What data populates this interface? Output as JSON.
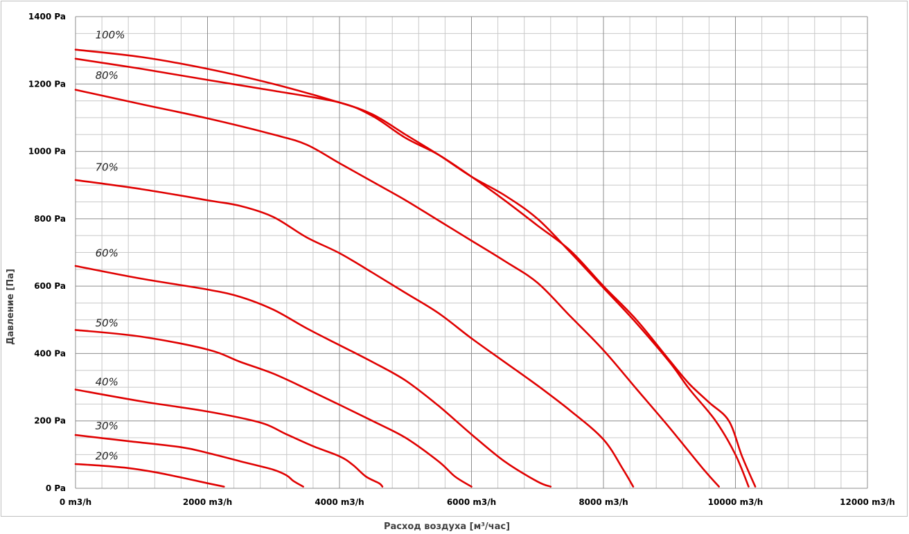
{
  "chart_data": {
    "type": "line",
    "xlabel": "Расход воздуха [м³/час]",
    "ylabel": "Давление [Па]",
    "xlim": [
      0,
      12000
    ],
    "ylim": [
      0,
      1400
    ],
    "x_ticks": [
      0,
      2000,
      4000,
      6000,
      8000,
      10000,
      12000
    ],
    "x_tick_labels": [
      "0 m3/h",
      "2000 m3/h",
      "4000 m3/h",
      "6000 m3/h",
      "8000 m3/h",
      "10000 m3/h",
      "12000 m3/h"
    ],
    "y_ticks": [
      0,
      200,
      400,
      600,
      800,
      1000,
      1200,
      1400
    ],
    "y_tick_labels": [
      "0 Pa",
      "200 Pa",
      "400 Pa",
      "600 Pa",
      "800 Pa",
      "1000 Pa",
      "1200 Pa",
      "1400 Pa"
    ],
    "grid": true,
    "legend": "none",
    "curve_color": "#e00000",
    "series": [
      {
        "name": "100%",
        "points": [
          [
            0,
            1302
          ],
          [
            1000,
            1280
          ],
          [
            2000,
            1245
          ],
          [
            3000,
            1200
          ],
          [
            4000,
            1145
          ],
          [
            4500,
            1110
          ],
          [
            5000,
            1050
          ],
          [
            5500,
            990
          ],
          [
            6000,
            925
          ],
          [
            6500,
            870
          ],
          [
            7000,
            800
          ],
          [
            7500,
            700
          ],
          [
            8000,
            595
          ],
          [
            8500,
            490
          ],
          [
            9000,
            375
          ],
          [
            9300,
            295
          ],
          [
            9700,
            200
          ],
          [
            10000,
            100
          ],
          [
            10200,
            5
          ]
        ]
      },
      {
        "name": "",
        "points": [
          [
            0,
            1275
          ],
          [
            1000,
            1245
          ],
          [
            2000,
            1212
          ],
          [
            3000,
            1180
          ],
          [
            4000,
            1145
          ],
          [
            4500,
            1105
          ],
          [
            5000,
            1040
          ],
          [
            5500,
            990
          ],
          [
            6000,
            925
          ],
          [
            6500,
            855
          ],
          [
            7000,
            780
          ],
          [
            7500,
            705
          ],
          [
            8000,
            600
          ],
          [
            8500,
            500
          ],
          [
            9000,
            380
          ],
          [
            9300,
            310
          ],
          [
            9600,
            255
          ],
          [
            9900,
            200
          ],
          [
            10100,
            95
          ],
          [
            10300,
            5
          ]
        ]
      },
      {
        "name": "80%",
        "points": [
          [
            0,
            1183
          ],
          [
            1000,
            1140
          ],
          [
            2000,
            1098
          ],
          [
            3000,
            1050
          ],
          [
            3500,
            1020
          ],
          [
            4000,
            965
          ],
          [
            4500,
            910
          ],
          [
            5000,
            855
          ],
          [
            5500,
            795
          ],
          [
            6000,
            735
          ],
          [
            6500,
            675
          ],
          [
            7000,
            610
          ],
          [
            7500,
            510
          ],
          [
            8000,
            410
          ],
          [
            8500,
            295
          ],
          [
            9000,
            180
          ],
          [
            9500,
            60
          ],
          [
            9750,
            5
          ]
        ]
      },
      {
        "name": "70%",
        "points": [
          [
            0,
            915
          ],
          [
            1000,
            888
          ],
          [
            2000,
            855
          ],
          [
            2500,
            838
          ],
          [
            3000,
            805
          ],
          [
            3500,
            745
          ],
          [
            4000,
            698
          ],
          [
            4500,
            640
          ],
          [
            5000,
            580
          ],
          [
            5500,
            520
          ],
          [
            6000,
            445
          ],
          [
            6500,
            375
          ],
          [
            7000,
            305
          ],
          [
            7500,
            230
          ],
          [
            8000,
            145
          ],
          [
            8300,
            55
          ],
          [
            8450,
            5
          ]
        ]
      },
      {
        "name": "60%",
        "points": [
          [
            0,
            660
          ],
          [
            1000,
            622
          ],
          [
            2000,
            590
          ],
          [
            2500,
            568
          ],
          [
            3000,
            530
          ],
          [
            3500,
            475
          ],
          [
            4000,
            425
          ],
          [
            4500,
            375
          ],
          [
            5000,
            320
          ],
          [
            5500,
            245
          ],
          [
            6000,
            160
          ],
          [
            6500,
            80
          ],
          [
            7000,
            20
          ],
          [
            7200,
            5
          ]
        ]
      },
      {
        "name": "50%",
        "points": [
          [
            0,
            470
          ],
          [
            1000,
            450
          ],
          [
            2000,
            412
          ],
          [
            2500,
            375
          ],
          [
            3000,
            340
          ],
          [
            3500,
            295
          ],
          [
            4000,
            248
          ],
          [
            4500,
            200
          ],
          [
            5000,
            150
          ],
          [
            5500,
            80
          ],
          [
            5750,
            35
          ],
          [
            6000,
            5
          ]
        ]
      },
      {
        "name": "40%",
        "points": [
          [
            0,
            293
          ],
          [
            1000,
            258
          ],
          [
            2000,
            228
          ],
          [
            2800,
            195
          ],
          [
            3200,
            160
          ],
          [
            3600,
            125
          ],
          [
            4000,
            95
          ],
          [
            4200,
            70
          ],
          [
            4400,
            35
          ],
          [
            4600,
            15
          ],
          [
            4650,
            5
          ]
        ]
      },
      {
        "name": "30%",
        "points": [
          [
            0,
            158
          ],
          [
            800,
            140
          ],
          [
            1600,
            122
          ],
          [
            2000,
            105
          ],
          [
            2500,
            80
          ],
          [
            3000,
            55
          ],
          [
            3200,
            38
          ],
          [
            3300,
            22
          ],
          [
            3450,
            5
          ]
        ]
      },
      {
        "name": "20%",
        "points": [
          [
            0,
            72
          ],
          [
            400,
            67
          ],
          [
            800,
            60
          ],
          [
            1200,
            48
          ],
          [
            1600,
            32
          ],
          [
            2000,
            15
          ],
          [
            2250,
            5
          ]
        ]
      }
    ],
    "curve_labels": [
      {
        "text": "100%",
        "x": 300,
        "y": 1335
      },
      {
        "text": "80%",
        "x": 300,
        "y": 1215
      },
      {
        "text": "70%",
        "x": 300,
        "y": 943
      },
      {
        "text": "60%",
        "x": 300,
        "y": 688
      },
      {
        "text": "50%",
        "x": 300,
        "y": 480
      },
      {
        "text": "40%",
        "x": 300,
        "y": 305
      },
      {
        "text": "30%",
        "x": 300,
        "y": 175
      },
      {
        "text": "20%",
        "x": 300,
        "y": 85
      }
    ]
  }
}
